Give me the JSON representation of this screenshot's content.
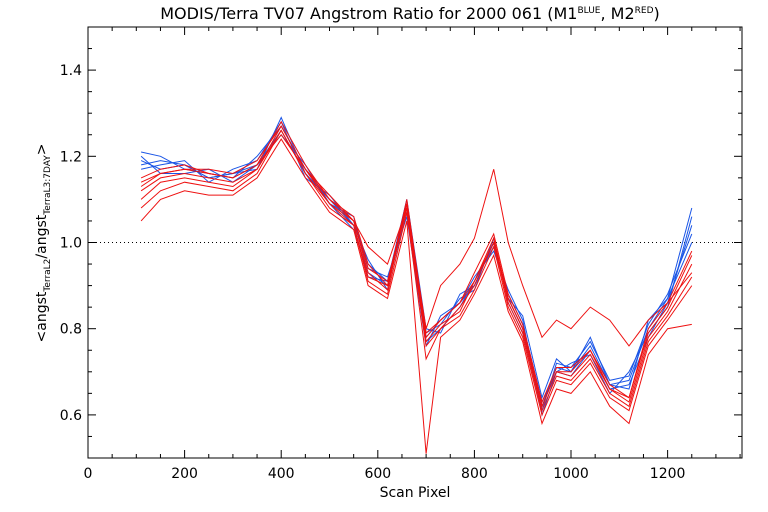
{
  "chart_data": {
    "type": "line",
    "title_main": "MODIS/Terra TV07 Angstrom Ratio for 2000 061 (M1",
    "title_sup1": "BLUE",
    "title_mid": ", M2",
    "title_sup2": "RED",
    "title_end": ")",
    "xlabel": "Scan Pixel",
    "ylabel_parts": {
      "open": "<angst",
      "sub1": "TerraL2",
      "slash": "/angst",
      "sub2": "TerraL3:7DAY",
      "close": ">"
    },
    "xlim": [
      0,
      1354
    ],
    "ylim": [
      0.5,
      1.5
    ],
    "x_ticks": [
      0,
      200,
      400,
      600,
      800,
      1000,
      1200
    ],
    "y_ticks": [
      0.6,
      0.8,
      1.0,
      1.2,
      1.4
    ],
    "x_tick_labels": [
      "0",
      "200",
      "400",
      "600",
      "800",
      "1000",
      "1200"
    ],
    "y_tick_labels": [
      "0.6",
      "0.8",
      "1.0",
      "1.2",
      "1.4"
    ],
    "reference_line": {
      "y": 1.0,
      "style": "dotted"
    },
    "colors": {
      "M1": "#1a55e6",
      "M2": "#ee1111"
    },
    "x": [
      110,
      150,
      200,
      250,
      300,
      350,
      400,
      450,
      500,
      550,
      580,
      620,
      660,
      700,
      730,
      770,
      800,
      840,
      870,
      900,
      940,
      970,
      1000,
      1040,
      1080,
      1120,
      1160,
      1200,
      1250
    ],
    "series": [
      {
        "detector": "M1",
        "values": [
          1.19,
          1.17,
          1.18,
          1.15,
          1.16,
          1.18,
          1.26,
          1.16,
          1.1,
          1.05,
          0.95,
          0.91,
          1.08,
          0.78,
          0.82,
          0.86,
          0.9,
          1.0,
          0.87,
          0.8,
          0.62,
          0.71,
          0.7,
          0.76,
          0.67,
          0.68,
          0.8,
          0.87,
          1.0
        ]
      },
      {
        "detector": "M1",
        "values": [
          1.21,
          1.2,
          1.17,
          1.16,
          1.15,
          1.2,
          1.27,
          1.17,
          1.09,
          1.03,
          0.93,
          0.9,
          1.07,
          0.77,
          0.8,
          0.85,
          0.91,
          0.99,
          0.88,
          0.81,
          0.63,
          0.7,
          0.69,
          0.75,
          0.66,
          0.67,
          0.78,
          0.86,
          1.04
        ]
      },
      {
        "detector": "M1",
        "values": [
          1.17,
          1.18,
          1.19,
          1.14,
          1.17,
          1.19,
          1.28,
          1.15,
          1.11,
          1.04,
          0.96,
          0.89,
          1.09,
          0.79,
          0.81,
          0.87,
          0.89,
          1.01,
          0.86,
          0.79,
          0.61,
          0.72,
          0.71,
          0.77,
          0.68,
          0.69,
          0.81,
          0.88,
          1.02
        ]
      },
      {
        "detector": "M1",
        "values": [
          1.2,
          1.16,
          1.16,
          1.17,
          1.14,
          1.18,
          1.25,
          1.18,
          1.09,
          1.06,
          0.94,
          0.92,
          1.06,
          0.76,
          0.83,
          0.86,
          0.92,
          0.98,
          0.89,
          0.82,
          0.6,
          0.7,
          0.72,
          0.74,
          0.65,
          0.7,
          0.79,
          0.85,
          1.06
        ]
      },
      {
        "detector": "M1",
        "values": [
          1.18,
          1.19,
          1.18,
          1.15,
          1.16,
          1.17,
          1.29,
          1.16,
          1.1,
          1.04,
          0.92,
          0.91,
          1.1,
          0.8,
          0.79,
          0.88,
          0.9,
          1.0,
          0.87,
          0.83,
          0.64,
          0.73,
          0.7,
          0.78,
          0.67,
          0.66,
          0.82,
          0.87,
          1.08
        ]
      },
      {
        "detector": "M2",
        "values": [
          1.12,
          1.15,
          1.16,
          1.15,
          1.14,
          1.17,
          1.27,
          1.17,
          1.09,
          1.05,
          0.93,
          0.89,
          1.09,
          0.77,
          0.81,
          0.84,
          0.91,
          1.0,
          0.87,
          0.8,
          0.62,
          0.7,
          0.69,
          0.74,
          0.66,
          0.63,
          0.78,
          0.84,
          0.95
        ]
      },
      {
        "detector": "M2",
        "values": [
          1.08,
          1.12,
          1.14,
          1.13,
          1.12,
          1.16,
          1.26,
          1.16,
          1.08,
          1.04,
          0.91,
          0.88,
          1.07,
          0.73,
          0.8,
          0.83,
          0.89,
          0.99,
          0.85,
          0.78,
          0.6,
          0.68,
          0.67,
          0.72,
          0.64,
          0.61,
          0.76,
          0.82,
          0.9
        ]
      },
      {
        "detector": "M2",
        "values": [
          1.15,
          1.17,
          1.18,
          1.16,
          1.15,
          1.18,
          1.28,
          1.18,
          1.1,
          1.06,
          0.95,
          0.9,
          1.1,
          0.79,
          0.82,
          0.86,
          0.93,
          1.02,
          0.88,
          0.81,
          0.63,
          0.71,
          0.71,
          0.75,
          0.67,
          0.64,
          0.8,
          0.86,
          0.98
        ]
      },
      {
        "detector": "M2",
        "values": [
          1.05,
          1.1,
          1.12,
          1.11,
          1.11,
          1.15,
          1.24,
          1.15,
          1.07,
          1.03,
          0.9,
          0.87,
          1.05,
          0.51,
          0.78,
          0.82,
          0.88,
          0.97,
          0.84,
          0.77,
          0.58,
          0.66,
          0.65,
          0.7,
          0.62,
          0.58,
          0.74,
          0.8,
          0.81
        ]
      },
      {
        "detector": "M2",
        "values": [
          1.14,
          1.16,
          1.17,
          1.17,
          1.16,
          1.19,
          1.27,
          1.17,
          1.11,
          1.05,
          0.99,
          0.95,
          1.08,
          0.8,
          0.9,
          0.95,
          1.01,
          1.17,
          1.0,
          0.9,
          0.78,
          0.82,
          0.8,
          0.85,
          0.82,
          0.76,
          0.82,
          0.86,
          0.93
        ]
      },
      {
        "detector": "M2",
        "values": [
          1.1,
          1.14,
          1.15,
          1.14,
          1.13,
          1.17,
          1.26,
          1.16,
          1.09,
          1.04,
          0.92,
          0.9,
          1.08,
          0.76,
          0.8,
          0.85,
          0.9,
          1.0,
          0.86,
          0.79,
          0.61,
          0.69,
          0.68,
          0.73,
          0.65,
          0.62,
          0.77,
          0.83,
          0.92
        ]
      },
      {
        "detector": "M2",
        "values": [
          1.13,
          1.16,
          1.17,
          1.16,
          1.15,
          1.18,
          1.25,
          1.17,
          1.1,
          1.05,
          0.94,
          0.91,
          1.09,
          0.78,
          0.82,
          0.86,
          0.91,
          1.01,
          0.87,
          0.8,
          0.62,
          0.7,
          0.7,
          0.75,
          0.66,
          0.64,
          0.79,
          0.85,
          0.97
        ]
      }
    ]
  }
}
